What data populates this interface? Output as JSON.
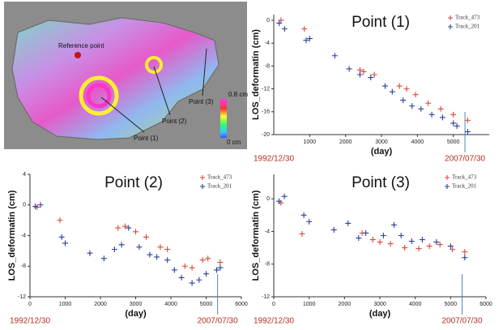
{
  "map": {
    "reference_label": "Reference point",
    "point_labels": [
      "Point (1)",
      "Point (2)",
      "Point (3)"
    ],
    "scale_max": "0.8 cm",
    "scale_min": "0 cm"
  },
  "chart_data": [
    {
      "type": "scatter",
      "title": "Point (1)",
      "x_label": "(day)",
      "y_label": "LOS_deformatin (cm)",
      "xlim": [
        0,
        6000
      ],
      "xticks": [
        1000,
        2000,
        3000,
        4000,
        5000
      ],
      "ylim": [
        -20,
        1
      ],
      "yticks": [
        0,
        -4,
        -8,
        -12,
        -16,
        -20
      ],
      "annotations": [
        {
          "text": "1992/12/30",
          "x": 0
        },
        {
          "text": "2007/07/30",
          "x": 5325
        }
      ],
      "legend": "upper right",
      "series": [
        {
          "name": "Track_473",
          "color": "#d9483b",
          "x": [
            200,
            850,
            2400,
            2500,
            2800,
            3500,
            3700,
            3950,
            4300,
            4650,
            5000,
            5400
          ],
          "values": [
            0,
            -1.5,
            -8.7,
            -9,
            -9.5,
            -11.5,
            -12,
            -13,
            -14.5,
            -15.5,
            -16.5,
            -17.5
          ]
        },
        {
          "name": "Track_201",
          "color": "#2b3f9c",
          "x": [
            150,
            300,
            900,
            1000,
            1700,
            2100,
            2400,
            2700,
            3100,
            3300,
            3600,
            3850,
            4100,
            4400,
            4700,
            5000,
            5100,
            5400
          ],
          "values": [
            -0.5,
            -1.5,
            -3.5,
            -3.2,
            -6.2,
            -8.5,
            -9.5,
            -10,
            -11.5,
            -12.5,
            -14,
            -15,
            -15.5,
            -16.5,
            -17,
            -18,
            -18.5,
            -19.5
          ]
        }
      ]
    },
    {
      "type": "scatter",
      "title": "Point (2)",
      "x_label": "(day)",
      "y_label": "LOS_deformatin (cm)",
      "xlim": [
        0,
        6000
      ],
      "xticks": [
        0,
        1000,
        2000,
        3000,
        4000,
        5000,
        6000
      ],
      "ylim": [
        -12,
        4
      ],
      "yticks": [
        4,
        0,
        -4,
        -8,
        -12
      ],
      "annotations": [
        {
          "text": "1992/12/30",
          "x": 0
        },
        {
          "text": "2007/07/30",
          "x": 5325
        }
      ],
      "legend": "upper right",
      "series": [
        {
          "name": "Track_473",
          "color": "#d9483b",
          "x": [
            200,
            850,
            2500,
            2700,
            3000,
            3300,
            3700,
            3900,
            4400,
            4600,
            4900,
            5050,
            5400
          ],
          "values": [
            -0.3,
            -2,
            -3,
            -2.8,
            -3.5,
            -4.2,
            -5.5,
            -5.8,
            -8,
            -8.2,
            -7.2,
            -7,
            -7.5
          ]
        },
        {
          "name": "Track_201",
          "color": "#2b3f9c",
          "x": [
            150,
            300,
            900,
            1000,
            1700,
            2100,
            2400,
            2600,
            2800,
            3100,
            3400,
            3600,
            3900,
            4100,
            4300,
            4600,
            4800,
            5000,
            5300,
            5400
          ],
          "values": [
            -0.2,
            0,
            -4.2,
            -5,
            -6.3,
            -7,
            -5.8,
            -5.2,
            -3,
            -5.5,
            -6.5,
            -6.8,
            -7.2,
            -8.5,
            -9.5,
            -10.2,
            -9.8,
            -9,
            -8.5,
            -8.2
          ]
        }
      ]
    },
    {
      "type": "scatter",
      "title": "Point (3)",
      "x_label": "(day)",
      "y_label": "LOS_deformatin (cm)",
      "xlim": [
        0,
        6000
      ],
      "xticks": [
        0,
        1000,
        2000,
        3000,
        4000,
        5000,
        6000
      ],
      "ylim": [
        -12,
        3
      ],
      "yticks": [
        0,
        -4,
        -8,
        -12
      ],
      "annotations": [
        {
          "text": "1992/12/30",
          "x": 0
        },
        {
          "text": "2007/07/30",
          "x": 5325
        }
      ],
      "legend": "upper right",
      "series": [
        {
          "name": "Track_473",
          "color": "#d9483b",
          "x": [
            200,
            800,
            2500,
            2800,
            3000,
            3300,
            3700,
            4100,
            4400,
            4700,
            5050,
            5400
          ],
          "values": [
            -0.5,
            -4.3,
            -4.2,
            -5,
            -5.3,
            -5.5,
            -6,
            -6.1,
            -5.8,
            -5.6,
            -6.2,
            -6.5
          ]
        },
        {
          "name": "Track_201",
          "color": "#2b3f9c",
          "x": [
            150,
            300,
            850,
            1000,
            1700,
            2100,
            2400,
            2600,
            3100,
            3400,
            3600,
            3900,
            4200,
            4600,
            5000,
            5400
          ],
          "values": [
            -0.3,
            0.3,
            -2,
            -2.8,
            -3.8,
            -3,
            -4.8,
            -4.2,
            -4.5,
            -3.2,
            -4.5,
            -5.2,
            -5,
            -5.3,
            -5.8,
            -7.2
          ]
        }
      ]
    }
  ]
}
